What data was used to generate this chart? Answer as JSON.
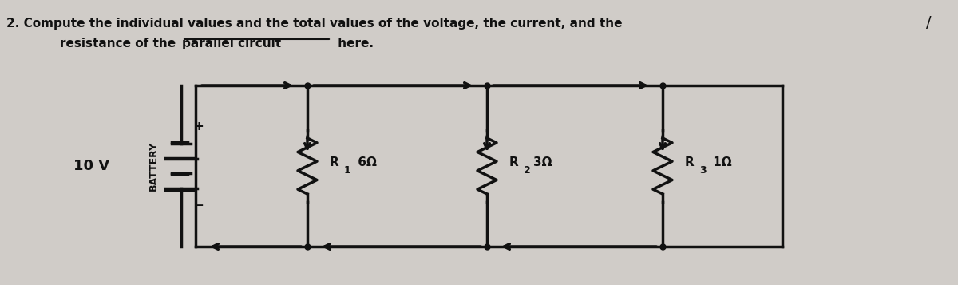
{
  "bg_color": "#d0ccc8",
  "text_color": "#1a1a1a",
  "title_line1": "2. Compute the individual values and the total values of the voltage, the current, and the",
  "title_line2": "resistance of the",
  "title_line2_bold_underline": "parallel circuit",
  "title_line2_end": "here.",
  "voltage_label": "10 V",
  "battery_label": "BATTERY",
  "r1_label": "R",
  "r1_sub": "1",
  "r1_val": "6Ω",
  "r2_label": "R",
  "r2_sub": "2",
  "r2_val": "3Ω",
  "r3_label": "R",
  "r3_sub": "3",
  "r3_val": "1Ω",
  "slash_mark": "/",
  "line_color": "#111111",
  "lw": 2.5
}
